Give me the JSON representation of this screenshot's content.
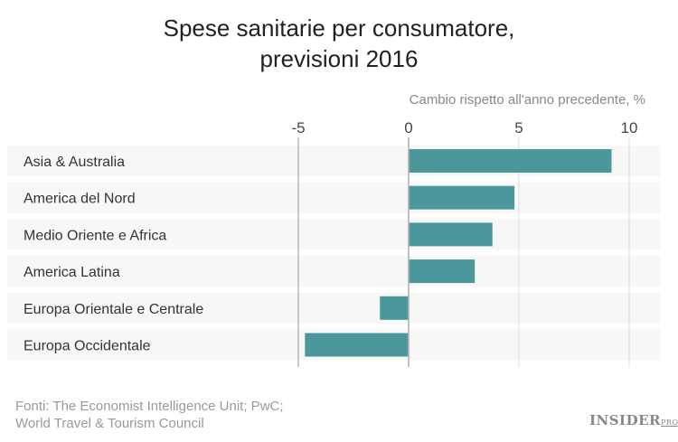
{
  "chart_data": {
    "type": "bar",
    "orientation": "horizontal",
    "title_line1": "Spese sanitarie per consumatore,",
    "title_line2": "previsioni 2016",
    "xlabel": "Cambio rispetto all'anno precedente, %",
    "categories": [
      "Asia & Australia",
      "America del Nord",
      "Medio Oriente e Africa",
      "America Latina",
      "Europa Orientale e Centrale",
      "Europa Occidentale"
    ],
    "values": [
      9.2,
      4.8,
      3.8,
      3.0,
      -1.3,
      -4.7
    ],
    "xticks": [
      "-5",
      "0",
      "5",
      "10"
    ],
    "xtick_values": [
      -5,
      0,
      5,
      10
    ],
    "xlim": [
      -5,
      10
    ],
    "grid": true,
    "bar_color": "#4a989c",
    "band_color": "#f7f7f5"
  },
  "source_line1": "Fonti: The Economist Intelligence Unit; PwC;",
  "source_line2": "World Travel & Tourism Council",
  "logo": "INSIDER PRO"
}
